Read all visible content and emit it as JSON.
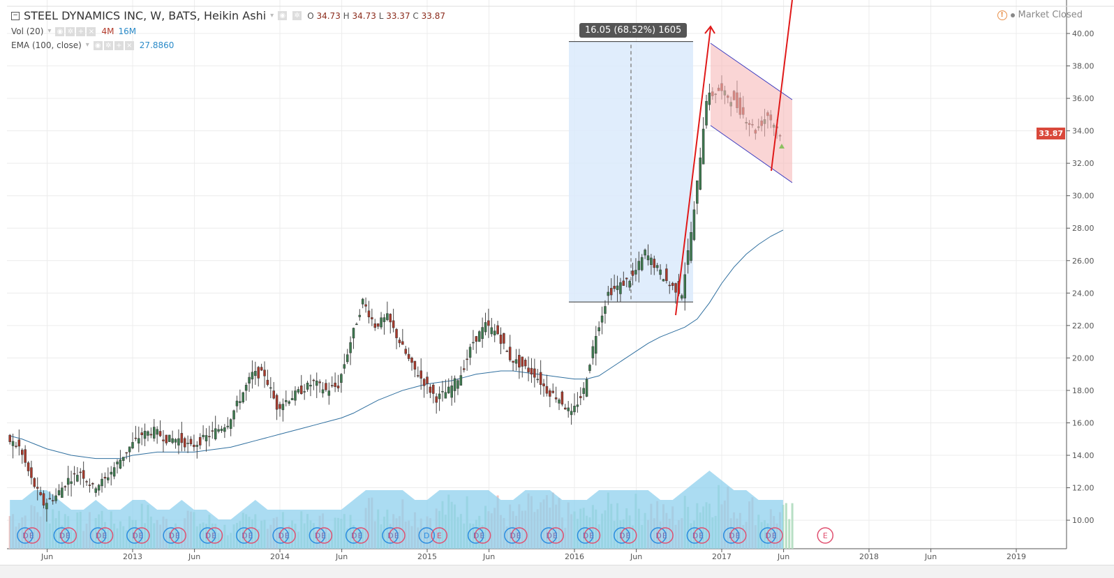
{
  "header": {
    "title": "STEEL DYNAMICS INC, W, BATS, Heikin Ashi",
    "ohlc": {
      "o_label": "O",
      "o": "34.73",
      "h_label": "H",
      "h": "34.73",
      "l_label": "L",
      "l": "33.37",
      "c_label": "C",
      "c": "33.87"
    },
    "vol": {
      "label": "Vol (20)",
      "v1": "4M",
      "v2": "16M"
    },
    "ema": {
      "label": "EMA (100, close)",
      "value": "27.8860"
    },
    "status": "Market Closed"
  },
  "colors": {
    "up": "#3d7a4f",
    "down": "#a83a2c",
    "ema": "#2f6f9f",
    "vol_ma": "#8fd0ee",
    "drawing_red": "#e01919",
    "channel": "#3b3bc0",
    "range_box": "#dbeafc"
  },
  "annotation": "16.05 (68.52%) 1605",
  "last_price": "33.87",
  "chart_data": {
    "type": "candlestick",
    "style": "Heikin Ashi",
    "y_ticks": [
      "40.00",
      "38.00",
      "36.00",
      "34.00",
      "32.00",
      "30.00",
      "28.00",
      "26.00",
      "24.00",
      "22.00",
      "20.00",
      "18.00",
      "16.00",
      "14.00",
      "12.00",
      "10.00"
    ],
    "ylim": [
      9.5,
      41
    ],
    "x_ticks": [
      {
        "label": "Jun",
        "date": 2012.42
      },
      {
        "label": "2013",
        "date": 2013
      },
      {
        "label": "Jun",
        "date": 2013.42
      },
      {
        "label": "2014",
        "date": 2014
      },
      {
        "label": "Jun",
        "date": 2014.42
      },
      {
        "label": "2015",
        "date": 2015
      },
      {
        "label": "Jun",
        "date": 2015.42
      },
      {
        "label": "2016",
        "date": 2016
      },
      {
        "label": "Jun",
        "date": 2016.42
      },
      {
        "label": "2017",
        "date": 2017
      },
      {
        "label": "Jun",
        "date": 2017.42
      },
      {
        "label": "2018",
        "date": 2018
      },
      {
        "label": "Jun",
        "date": 2018.42
      },
      {
        "label": "2019",
        "date": 2019
      }
    ],
    "grid": true,
    "monthly_close": {
      "start": "2012-03",
      "values": [
        15,
        14.5,
        12.5,
        11,
        11.5,
        12.5,
        13,
        12,
        12.5,
        13.5,
        14.5,
        15.3,
        15.5,
        15,
        15,
        14.5,
        15,
        15.5,
        16,
        17.5,
        19,
        19,
        17,
        17.5,
        18,
        18.5,
        18,
        18.3,
        21,
        23.5,
        22,
        22.5,
        21,
        19.5,
        18.5,
        17.5,
        18,
        19,
        21,
        22,
        21.5,
        20,
        19.5,
        19,
        18,
        17.5,
        16.5,
        18,
        21.5,
        24,
        24.5,
        25,
        26.5,
        25.5,
        24.5,
        24,
        29,
        36,
        36.5,
        36,
        35,
        34,
        35,
        33.87
      ]
    },
    "ema_100": {
      "start": "2012-03",
      "values": [
        15.2,
        15,
        14.7,
        14.4,
        14.2,
        14,
        13.9,
        13.8,
        13.8,
        13.8,
        14,
        14.1,
        14.2,
        14.2,
        14.2,
        14.2,
        14.3,
        14.4,
        14.5,
        14.7,
        14.9,
        15.1,
        15.3,
        15.5,
        15.7,
        15.9,
        16.1,
        16.3,
        16.6,
        17,
        17.4,
        17.7,
        18,
        18.2,
        18.4,
        18.5,
        18.6,
        18.8,
        19,
        19.1,
        19.2,
        19.2,
        19.1,
        19,
        18.9,
        18.8,
        18.7,
        18.7,
        18.9,
        19.4,
        19.9,
        20.4,
        20.9,
        21.3,
        21.6,
        21.9,
        22.4,
        23.4,
        24.6,
        25.6,
        26.4,
        27,
        27.5,
        27.886
      ]
    },
    "volume_monthly": [
      5,
      5,
      6,
      6,
      5,
      4,
      4,
      5,
      4,
      4,
      5,
      5,
      4,
      4,
      5,
      4,
      4,
      3,
      3,
      4,
      5,
      4,
      4,
      4,
      4,
      4,
      4,
      4,
      5,
      6,
      6,
      6,
      6,
      5,
      5,
      6,
      6,
      6,
      6,
      6,
      5,
      5,
      6,
      6,
      6,
      5,
      5,
      5,
      6,
      6,
      6,
      6,
      6,
      5,
      5,
      6,
      7,
      8,
      7,
      6,
      6,
      5,
      5,
      5
    ],
    "events": [
      "DE",
      "DE",
      "DE",
      "DE",
      "DE",
      "DE",
      "DE",
      "DE",
      "DE",
      "DE",
      "DE",
      "D",
      "E",
      "DE",
      "DE",
      "DE",
      "DE",
      "DE",
      "DE",
      "DE",
      "DE",
      "DE",
      "E"
    ]
  }
}
